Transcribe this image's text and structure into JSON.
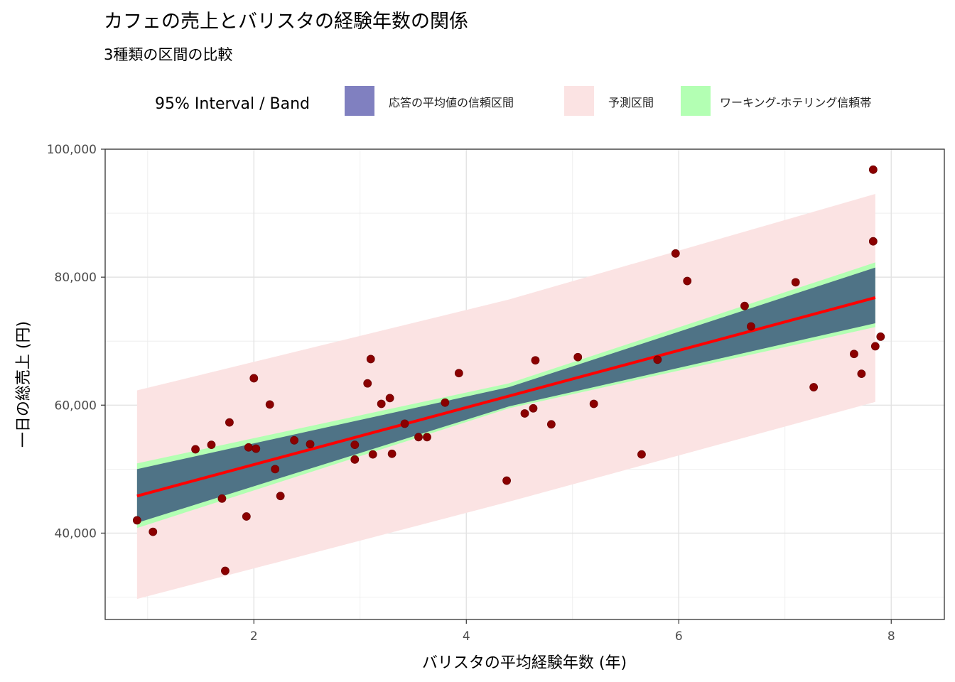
{
  "chart_data": {
    "type": "scatter",
    "title": "カフェの売上とバリスタの経験年数の関係",
    "subtitle": "3種類の区間の比較",
    "xlabel": "バリスタの平均経験年数 (年)",
    "ylabel": "一日の総売上 (円)",
    "xlim": [
      0.6,
      8.5
    ],
    "ylim": [
      26500,
      100000
    ],
    "x_ticks": [
      2,
      4,
      6,
      8
    ],
    "x_tick_labels": [
      "2",
      "4",
      "6",
      "8"
    ],
    "y_ticks": [
      40000,
      60000,
      80000,
      100000
    ],
    "y_tick_labels": [
      "40,000",
      "60,000",
      "80,000",
      "100,000"
    ],
    "grid": true,
    "legend": {
      "position": "top",
      "title": "95% Interval / Band",
      "items": [
        {
          "label": "応答の平均値の信頼区間",
          "color": "#8080c0"
        },
        {
          "label": "予測区間",
          "color": "#fbe3e3"
        },
        {
          "label": "ワーキング-ホテリング信頼帯",
          "color": "#b3ffb3"
        }
      ]
    },
    "regression_line": {
      "color": "#ff0000",
      "x": [
        0.9,
        7.85
      ],
      "y": [
        45800,
        76800
      ]
    },
    "bands": {
      "x": [
        0.9,
        4.4,
        7.85
      ],
      "prediction": {
        "color": "#fbe3e3",
        "lower": [
          29700,
          44900,
          60500
        ],
        "upper": [
          62300,
          76500,
          93000
        ]
      },
      "working_hotelling": {
        "color": "#b3ffb3",
        "lower": [
          40800,
          59500,
          72200
        ],
        "upper": [
          50900,
          63400,
          82300
        ]
      },
      "confidence": {
        "color": "#8080c0",
        "lower": [
          41600,
          59800,
          72800
        ],
        "upper": [
          50000,
          62800,
          81500
        ]
      }
    },
    "points": {
      "color": "#8b0000",
      "data": [
        [
          0.9,
          42000
        ],
        [
          1.05,
          40200
        ],
        [
          1.45,
          53100
        ],
        [
          1.6,
          53800
        ],
        [
          1.7,
          45400
        ],
        [
          1.73,
          34100
        ],
        [
          1.77,
          57300
        ],
        [
          1.93,
          42600
        ],
        [
          1.95,
          53400
        ],
        [
          2.0,
          64200
        ],
        [
          2.02,
          53200
        ],
        [
          2.15,
          60100
        ],
        [
          2.2,
          50000
        ],
        [
          2.25,
          45800
        ],
        [
          2.38,
          54500
        ],
        [
          2.53,
          53900
        ],
        [
          2.95,
          53800
        ],
        [
          2.95,
          51500
        ],
        [
          3.07,
          63400
        ],
        [
          3.1,
          67200
        ],
        [
          3.12,
          52300
        ],
        [
          3.2,
          60200
        ],
        [
          3.28,
          61100
        ],
        [
          3.3,
          52400
        ],
        [
          3.42,
          57100
        ],
        [
          3.55,
          55000
        ],
        [
          3.63,
          55000
        ],
        [
          3.8,
          60400
        ],
        [
          3.93,
          65000
        ],
        [
          4.38,
          48200
        ],
        [
          4.55,
          58700
        ],
        [
          4.63,
          59500
        ],
        [
          4.65,
          67000
        ],
        [
          4.8,
          57000
        ],
        [
          5.05,
          67500
        ],
        [
          5.2,
          60200
        ],
        [
          5.65,
          52300
        ],
        [
          5.8,
          67100
        ],
        [
          5.97,
          83700
        ],
        [
          6.08,
          79400
        ],
        [
          6.62,
          75500
        ],
        [
          6.68,
          72300
        ],
        [
          7.1,
          79200
        ],
        [
          7.27,
          62800
        ],
        [
          7.65,
          68000
        ],
        [
          7.72,
          64900
        ],
        [
          7.83,
          96800
        ],
        [
          7.83,
          85600
        ],
        [
          7.85,
          69200
        ],
        [
          7.9,
          70700
        ]
      ]
    }
  }
}
